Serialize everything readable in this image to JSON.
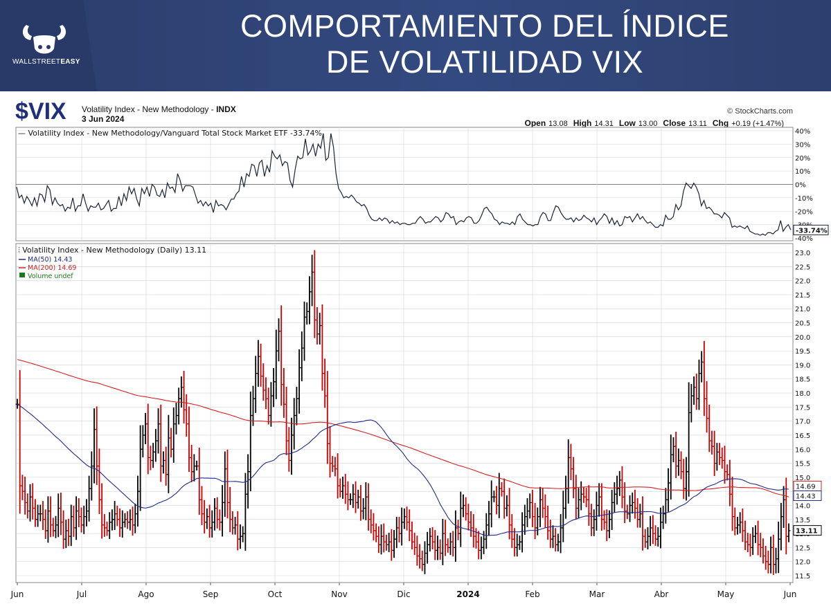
{
  "banner": {
    "title_line1": "COMPORTAMIENTO DEL ÍNDICE",
    "title_line2": "DE VOLATILIDAD VIX",
    "brand_light": "WALLSTREET",
    "brand_bold": "EASY"
  },
  "header": {
    "symbol": "$VIX",
    "name": "Volatility Index - New Methodology - ",
    "exchange": "INDX",
    "date": "3 Jun 2024",
    "credit": "© StockCharts.com",
    "ohlc": [
      {
        "label": "Open",
        "value": "13.08"
      },
      {
        "label": "High",
        "value": "14.31"
      },
      {
        "label": "Low",
        "value": "13.00"
      },
      {
        "label": "Close",
        "value": "13.11"
      },
      {
        "label": "Chg",
        "value": "+0.19 (+1.47%)"
      }
    ]
  },
  "colors": {
    "up": "#000000",
    "down": "#cc0000",
    "ma50": "#1f2a8a",
    "ma200": "#d42020",
    "ratio": "#1a2233",
    "grid": "#cdd3da"
  },
  "chart_data": [
    {
      "type": "line",
      "title": "Volatility Index - New Methodology/Vanguard Total Stock Market ETF -33.74%",
      "ylim": [
        -40,
        40
      ],
      "yticks": [
        "40%",
        "30%",
        "20%",
        "10%",
        "0%",
        "-10%",
        "-20%",
        "-30%",
        "-40%"
      ],
      "last_label": "-33.74%",
      "series": [
        {
          "name": "Volatility Index - New Methodology/Vanguard Total Stock Market ETF",
          "values": [
            -2,
            -10,
            -8,
            -14,
            -9,
            -12,
            -16,
            -10,
            -16,
            -7,
            -8,
            -13,
            -1,
            -4,
            -15,
            -10,
            -14,
            -16,
            -15,
            -20,
            -17,
            -18,
            -10,
            -20,
            -16,
            -16,
            -7,
            -14,
            -20,
            -16,
            -17,
            -17,
            -14,
            -19,
            -18,
            -15,
            -12,
            -20,
            -18,
            -18,
            -9,
            -16,
            -7,
            -12,
            -2,
            -7,
            -3,
            -11,
            -16,
            -3,
            -7,
            -2,
            -9,
            0,
            -2,
            -8,
            -9,
            -4,
            -10,
            1,
            -3,
            -2,
            -6,
            8,
            3,
            -5,
            -1,
            -1,
            -1,
            -2,
            -8,
            -14,
            -12,
            -16,
            -13,
            -16,
            -14,
            -21,
            -12,
            -16,
            -15,
            -16,
            -19,
            -15,
            -11,
            -11,
            -7,
            -5,
            6,
            -2,
            8,
            6,
            15,
            14,
            6,
            16,
            18,
            6,
            14,
            9,
            25,
            21,
            19,
            22,
            14,
            17,
            16,
            3,
            -2,
            11,
            21,
            19,
            20,
            34,
            22,
            25,
            30,
            21,
            30,
            27,
            38,
            18,
            20,
            38,
            28,
            8,
            -3,
            -6,
            -10,
            -9,
            -10,
            -8,
            -10,
            -13,
            -14,
            -16,
            -15,
            -18,
            -23,
            -26,
            -27,
            -27,
            -25,
            -27,
            -25,
            -26,
            -29,
            -27,
            -29,
            -28,
            -30,
            -29,
            -29,
            -30,
            -30,
            -29,
            -29,
            -26,
            -24,
            -26,
            -29,
            -28,
            -28,
            -26,
            -24,
            -25,
            -28,
            -26,
            -21,
            -22,
            -25,
            -24,
            -30,
            -28,
            -27,
            -28,
            -25,
            -24,
            -25,
            -29,
            -29,
            -27,
            -23,
            -18,
            -17,
            -20,
            -22,
            -26,
            -27,
            -30,
            -28,
            -29,
            -29,
            -30,
            -28,
            -30,
            -24,
            -22,
            -26,
            -28,
            -30,
            -30,
            -31,
            -30,
            -30,
            -24,
            -21,
            -22,
            -27,
            -27,
            -21,
            -16,
            -17,
            -21,
            -24,
            -26,
            -26,
            -25,
            -28,
            -25,
            -27,
            -26,
            -23,
            -25,
            -26,
            -28,
            -25,
            -30,
            -27,
            -25,
            -22,
            -24,
            -29,
            -25,
            -30,
            -27,
            -31,
            -30,
            -24,
            -25,
            -24,
            -28,
            -25,
            -22,
            -26,
            -24,
            -27,
            -29,
            -28,
            -30,
            -32,
            -32,
            -30,
            -31,
            -23,
            -26,
            -26,
            -24,
            -15,
            -19,
            -16,
            -5,
            1,
            -1,
            -3,
            1,
            -2,
            -7,
            -16,
            -12,
            -18,
            -17,
            -19,
            -22,
            -22,
            -23,
            -25,
            -21,
            -23,
            -25,
            -32,
            -31,
            -32,
            -31,
            -32,
            -33,
            -31,
            -35,
            -36,
            -37,
            -37,
            -38,
            -37,
            -38,
            -36,
            -36,
            -37,
            -35,
            -34,
            -27,
            -35,
            -32,
            -30,
            -34
          ]
        }
      ]
    },
    {
      "type": "candlestick",
      "title": "Volatility Index - New Methodology (Daily) 13.11",
      "ylim": [
        11.4,
        23.2
      ],
      "yticks": [
        "23.0",
        "22.5",
        "22.0",
        "21.5",
        "21.0",
        "20.5",
        "20.0",
        "19.5",
        "19.0",
        "18.5",
        "18.0",
        "17.5",
        "17.0",
        "16.5",
        "16.0",
        "15.5",
        "15.0",
        "14.5",
        "14.0",
        "13.5",
        "13.0",
        "12.5",
        "12.0",
        "11.5"
      ],
      "x_labels": [
        "Jun",
        "Jul",
        "Ago",
        "Sep",
        "Oct",
        "Nov",
        "Dic",
        "2024",
        "Feb",
        "Mar",
        "Abr",
        "May",
        "Jun"
      ],
      "close": [
        17.6,
        14.7,
        14.5,
        14.1,
        13.8,
        14.3,
        13.9,
        13.5,
        13.7,
        13.7,
        13.5,
        13.1,
        13.8,
        13.3,
        13.1,
        13.3,
        13.9,
        13.4,
        12.8,
        13.1,
        12.9,
        13.6,
        13.2,
        13.8,
        13.6,
        13.3,
        13.6,
        13.8,
        14.6,
        15.4,
        16.7,
        15.4,
        14.2,
        13.3,
        13.2,
        13.1,
        13.4,
        13.5,
        13.7,
        13.5,
        13.2,
        13.4,
        13.5,
        13.4,
        13.5,
        13.3,
        13.7,
        14.5,
        16.0,
        16.5,
        16.9,
        15.7,
        15.6,
        15.9,
        16.3,
        16.9,
        15.4,
        15.6,
        15.1,
        16.4,
        16.0,
        16.9,
        17.2,
        17.8,
        18.2,
        17.4,
        16.9,
        15.7,
        15.2,
        15.4,
        15.4,
        14.2,
        13.7,
        13.4,
        13.6,
        13.2,
        13.4,
        13.9,
        13.5,
        13.4,
        14.1,
        15.3,
        14.1,
        13.5,
        13.2,
        13.3,
        12.8,
        12.9,
        13.0,
        14.4,
        15.2,
        17.2,
        17.8,
        18.7,
        19.3,
        18.6,
        18.1,
        17.8,
        17.2,
        17.9,
        18.4,
        19.5,
        20.2,
        18.3,
        17.6,
        16.3,
        15.6,
        16.5,
        17.2,
        17.8,
        18.9,
        19.6,
        20.7,
        20.9,
        21.6,
        22.3,
        20.6,
        20.1,
        20.4,
        18.7,
        17.9,
        16.2,
        15.5,
        15.4,
        15.3,
        14.7,
        14.5,
        14.7,
        14.4,
        14.2,
        14.2,
        14.4,
        14.1,
        14.3,
        13.8,
        13.9,
        14.3,
        13.5,
        13.3,
        13.1,
        12.9,
        12.6,
        12.9,
        12.7,
        12.6,
        12.7,
        12.4,
        12.8,
        13.2,
        13.0,
        13.4,
        13.6,
        13.4,
        13.1,
        12.7,
        12.5,
        12.2,
        12.1,
        11.9,
        12.3,
        12.6,
        12.9,
        12.7,
        12.4,
        12.5,
        12.3,
        13.0,
        12.6,
        12.5,
        12.7,
        12.5,
        13.2,
        13.0,
        13.9,
        14.0,
        13.7,
        13.4,
        13.2,
        12.9,
        12.7,
        12.4,
        12.5,
        12.8,
        13.3,
        13.7,
        14.3,
        14.3,
        14.0,
        14.6,
        14.5,
        13.9,
        14.0,
        13.3,
        12.8,
        12.5,
        12.6,
        12.7,
        13.3,
        13.6,
        13.8,
        14.1,
        13.6,
        13.2,
        13.6,
        14.2,
        13.9,
        13.6,
        13.1,
        12.8,
        12.9,
        12.6,
        12.7,
        13.2,
        13.9,
        14.6,
        15.7,
        15.3,
        14.6,
        13.9,
        14.2,
        14.4,
        14.3,
        14.2,
        13.7,
        13.2,
        13.5,
        14.0,
        14.3,
        13.5,
        13.4,
        13.1,
        13.5,
        14.1,
        14.4,
        14.6,
        14.9,
        14.3,
        13.8,
        13.7,
        14.0,
        14.1,
        13.9,
        13.5,
        13.7,
        12.9,
        12.7,
        12.9,
        13.2,
        13.0,
        12.8,
        12.9,
        13.4,
        13.7,
        14.2,
        14.8,
        15.8,
        16.1,
        15.4,
        15.6,
        15.2,
        14.6,
        15.2,
        17.3,
        17.9,
        18.2,
        17.8,
        18.7,
        19.1,
        17.8,
        17.1,
        16.3,
        16.1,
        15.5,
        15.9,
        15.7,
        15.6,
        15.2,
        15.1,
        14.4,
        13.6,
        13.2,
        13.3,
        13.4,
        13.1,
        12.7,
        12.6,
        12.5,
        12.9,
        13.0,
        12.6,
        12.5,
        12.2,
        12.0,
        11.9,
        12.5,
        11.9,
        12.1,
        12.8,
        13.6,
        14.2,
        12.9,
        13.1
      ],
      "series": [
        {
          "name": "MA(50)",
          "label": "MA(50) 14.43",
          "last": "14.43"
        },
        {
          "name": "MA(200)",
          "label": "MA(200) 14.69",
          "last": "14.69"
        },
        {
          "name": "Volume",
          "label": "Volume undef"
        }
      ],
      "last_label": "13.11"
    }
  ]
}
